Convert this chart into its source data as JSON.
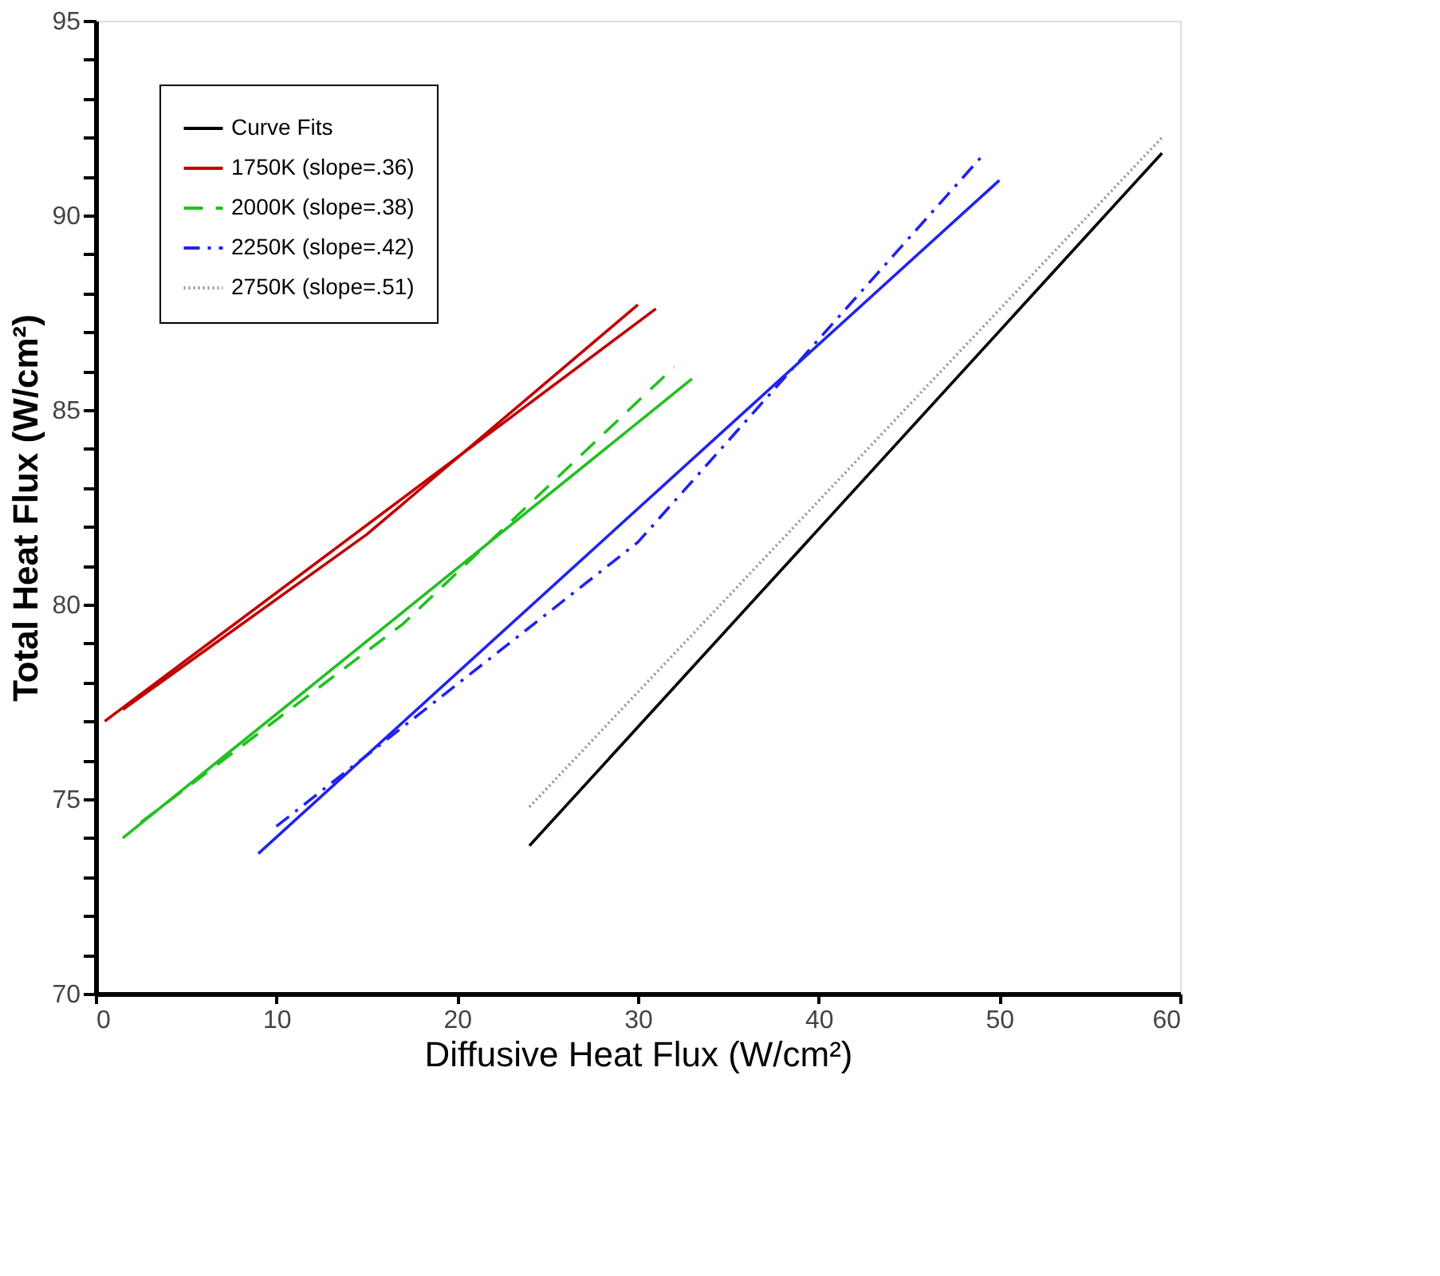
{
  "chart_data": {
    "type": "line",
    "xlabel": "Diffusive Heat Flux (W/cm²)",
    "ylabel": "Total Heat Flux (W/cm²)",
    "xlim": [
      0,
      60
    ],
    "xticks": [
      0,
      10,
      20,
      30,
      40,
      50,
      60
    ],
    "ylim": [
      70,
      95
    ],
    "yticks": [
      70,
      {
        "value": 71,
        "label": null
      },
      {
        "value": 72,
        "label": null
      },
      {
        "value": 73,
        "label": null
      },
      {
        "value": 74,
        "label": null
      },
      75,
      {
        "value": 76,
        "label": null
      },
      {
        "value": 77,
        "label": null
      },
      {
        "value": 78,
        "label": null
      },
      {
        "value": 79,
        "label": null
      },
      80,
      {
        "value": 81,
        "label": null
      },
      {
        "value": 82,
        "label": null
      },
      {
        "value": 83,
        "label": null
      },
      {
        "value": 84,
        "label": null
      },
      85,
      {
        "value": 86,
        "label": null
      },
      {
        "value": 87,
        "label": null
      },
      {
        "value": 88,
        "label": null
      },
      {
        "value": 89,
        "label": null
      },
      90,
      {
        "value": 91,
        "label": null
      },
      {
        "value": 92,
        "label": null
      },
      {
        "value": 93,
        "label": null
      },
      {
        "value": 94,
        "label": null
      },
      95
    ],
    "grid": false,
    "legend": "top left",
    "marker": "none",
    "series": [
      {
        "name": "Curve Fits",
        "color": "#000000",
        "line_style": "solid",
        "x": [
          24,
          59
        ],
        "values": [
          73.8,
          91.6
        ]
      },
      {
        "name": "1750K (slope=.36)",
        "color": "#c00000",
        "line_style": "solid",
        "x": [
          1.5,
          15,
          30
        ],
        "values": [
          77.3,
          81.8,
          87.7
        ]
      },
      {
        "name": "2000K (slope=.38)",
        "color": "#22c022",
        "line_style": "dashed",
        "x": [
          2.5,
          17,
          32
        ],
        "values": [
          74.4,
          79.5,
          86.1
        ]
      },
      {
        "name": "2250K (slope=.42)",
        "color": "#2222ee",
        "line_style": "dashdot",
        "x": [
          10,
          30,
          49
        ],
        "values": [
          74.3,
          81.6,
          91.5
        ]
      },
      {
        "name": "2750K (slope=.51)",
        "color": "#909090",
        "line_style": "dotted",
        "x": [
          24,
          59
        ],
        "values": [
          74.8,
          92.0
        ]
      },
      {
        "color": "#c00000",
        "line_style": "solid",
        "x": [
          0.5,
          31
        ],
        "values": [
          77.0,
          87.6
        ]
      },
      {
        "color": "#22c022",
        "line_style": "solid",
        "x": [
          1.5,
          33
        ],
        "values": [
          74.0,
          85.8
        ]
      },
      {
        "color": "#2222ee",
        "line_style": "solid",
        "x": [
          9,
          50
        ],
        "values": [
          73.6,
          90.9
        ]
      }
    ]
  }
}
